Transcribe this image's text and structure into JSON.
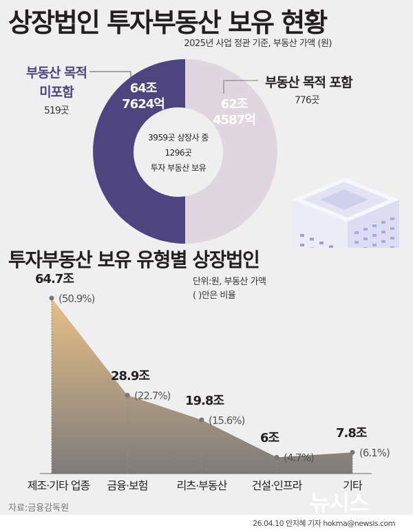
{
  "title": "상장법인 투자부동산 보유 현황",
  "subtitle": "2025년 사업 정관 기준, 부동산 가액 (원)",
  "donut": {
    "segments": [
      {
        "label_line1": "부동산 목적",
        "label_line2": "미포함",
        "count": "519곳",
        "value_line1": "64조",
        "value_line2": "7624억",
        "value": 64.7624,
        "color": "#4e4580"
      },
      {
        "label": "부동산 목적 포함",
        "count": "776곳",
        "value_line1": "62조",
        "value_line2": "4587억",
        "value": 62.4587,
        "color": "#e0d6e0"
      }
    ],
    "center_line1": "3959곳 상장사 중",
    "center_line2": "1296곳",
    "center_line3": "투자 부동산 보유"
  },
  "section2_title": "투자부동산 보유 유형별 상장법인",
  "unit_note_line1": "단위:원, 부동산 가액",
  "unit_note_line2": "( )안은 비율",
  "chart_data": {
    "type": "area",
    "categories": [
      "제조·기타 업종",
      "금융·보험",
      "리츠·부동산",
      "건설·인프라",
      "기타"
    ],
    "values": [
      64.7,
      28.9,
      19.8,
      6,
      7.8
    ],
    "value_labels": [
      "64.7조",
      "28.9조",
      "19.8조",
      "6조",
      "7.8조"
    ],
    "percent_labels": [
      "(50.9%)",
      "(22.7%)",
      "(15.6%)",
      "(4.7%)",
      "(6.1%)"
    ],
    "ylim": [
      0,
      65
    ],
    "grid": false,
    "fill_gradient": [
      "#e8bf86",
      "#7d7b7b"
    ]
  },
  "source": "자료:금융감독원",
  "credit": "26.04.10 안지혜 기자 hokma@newsis.com",
  "logo": "뉴시스"
}
